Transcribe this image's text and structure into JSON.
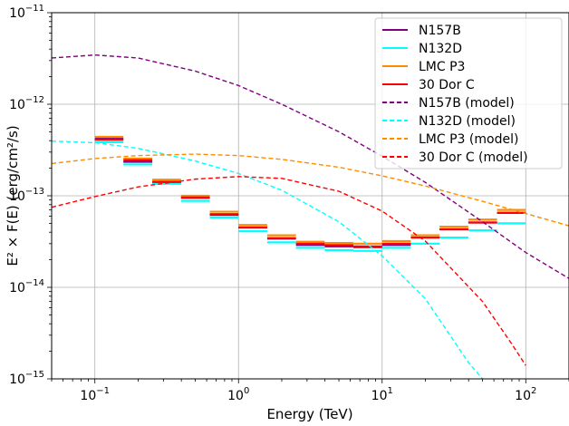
{
  "chart_data": {
    "type": "line",
    "xlabel": "Energy (TeV)",
    "ylabel": "E² × F(E) (erg/cm²/s)",
    "xscale": "log",
    "yscale": "log",
    "xlim": [
      0.05,
      200
    ],
    "ylim": [
      1e-15,
      1e-11
    ],
    "grid": true,
    "legend_position": "top-right",
    "x_tick_labels": [
      {
        "value": 0.1,
        "base": "10",
        "exp": "−1"
      },
      {
        "value": 1,
        "base": "10",
        "exp": "0"
      },
      {
        "value": 10,
        "base": "10",
        "exp": "1"
      },
      {
        "value": 100,
        "base": "10",
        "exp": "2"
      }
    ],
    "y_tick_labels": [
      {
        "value": 1e-11,
        "base": "10",
        "exp": "−11"
      },
      {
        "value": 1e-12,
        "base": "10",
        "exp": "−12"
      },
      {
        "value": 1e-13,
        "base": "10",
        "exp": "−13"
      },
      {
        "value": 1e-14,
        "base": "10",
        "exp": "−14"
      },
      {
        "value": 1e-15,
        "base": "10",
        "exp": "−15"
      }
    ],
    "bin_edges": [
      0.1,
      0.158,
      0.251,
      0.398,
      0.631,
      1.0,
      1.585,
      2.512,
      3.981,
      6.31,
      10.0,
      15.85,
      25.12,
      39.81,
      63.1,
      100.0
    ],
    "series": [
      {
        "name": "N157B",
        "color": "#800080",
        "style": "solid",
        "values": [
          4.2e-13,
          2.35e-13,
          1.4e-13,
          9.5e-14,
          6.2e-14,
          4.5e-14,
          3.4e-14,
          2.9e-14,
          2.8e-14,
          2.75e-14,
          2.9e-14,
          3.5e-14,
          4.3e-14,
          5.1e-14,
          6.5e-14
        ]
      },
      {
        "name": "N132D",
        "color": "#00ffff",
        "style": "solid",
        "values": [
          3.85e-13,
          2.2e-13,
          1.35e-13,
          8.8e-14,
          5.8e-14,
          4.1e-14,
          3.1e-14,
          2.7e-14,
          2.55e-14,
          2.5e-14,
          2.7e-14,
          3e-14,
          3.5e-14,
          4.2e-14,
          5e-14
        ]
      },
      {
        "name": "LMC P3",
        "color": "#ff8c00",
        "style": "solid",
        "values": [
          4.4e-13,
          2.55e-13,
          1.5e-13,
          1e-13,
          6.7e-14,
          4.8e-14,
          3.7e-14,
          3.15e-14,
          3.05e-14,
          3e-14,
          3.2e-14,
          3.7e-14,
          4.6e-14,
          5.5e-14,
          7e-14
        ]
      },
      {
        "name": "30 Dor C",
        "color": "#ff0000",
        "style": "solid",
        "values": [
          4.1e-13,
          2.45e-13,
          1.42e-13,
          9.6e-14,
          6.3e-14,
          4.5e-14,
          3.45e-14,
          3e-14,
          2.9e-14,
          2.8e-14,
          3e-14,
          3.5e-14,
          4.3e-14,
          5.1e-14,
          6.5e-14
        ]
      },
      {
        "name": "N157B (model)",
        "color": "#800080",
        "style": "dashed",
        "x": [
          0.05,
          0.1,
          0.2,
          0.5,
          1,
          2,
          5,
          10,
          20,
          50,
          100,
          200
        ],
        "values": [
          3.2e-12,
          3.45e-12,
          3.2e-12,
          2.3e-12,
          1.6e-12,
          1e-12,
          5e-13,
          2.7e-13,
          1.4e-13,
          5.2e-14,
          2.4e-14,
          1.25e-14
        ]
      },
      {
        "name": "N132D (model)",
        "color": "#00ffff",
        "style": "dashed",
        "x": [
          0.05,
          0.1,
          0.2,
          0.5,
          1,
          2,
          5,
          10,
          20,
          40,
          50
        ],
        "values": [
          3.95e-13,
          3.8e-13,
          3.3e-13,
          2.4e-13,
          1.75e-13,
          1.15e-13,
          5.2e-14,
          2.2e-14,
          7.5e-15,
          1.5e-15,
          1e-15
        ]
      },
      {
        "name": "LMC P3 (model)",
        "color": "#ff8c00",
        "style": "dashed",
        "x": [
          0.05,
          0.1,
          0.2,
          0.5,
          1,
          2,
          5,
          10,
          20,
          50,
          100,
          200
        ],
        "values": [
          2.25e-13,
          2.55e-13,
          2.75e-13,
          2.85e-13,
          2.75e-13,
          2.5e-13,
          2.05e-13,
          1.65e-13,
          1.28e-13,
          8.7e-14,
          6.4e-14,
          4.7e-14
        ]
      },
      {
        "name": "30 Dor C (model)",
        "color": "#ff0000",
        "style": "dashed",
        "x": [
          0.05,
          0.1,
          0.2,
          0.5,
          1,
          2,
          5,
          10,
          20,
          50,
          80,
          100
        ],
        "values": [
          7.5e-14,
          9.8e-14,
          1.25e-13,
          1.52e-13,
          1.62e-13,
          1.55e-13,
          1.12e-13,
          6.8e-14,
          3.2e-14,
          7e-15,
          2.4e-15,
          1.4e-15
        ]
      }
    ]
  }
}
